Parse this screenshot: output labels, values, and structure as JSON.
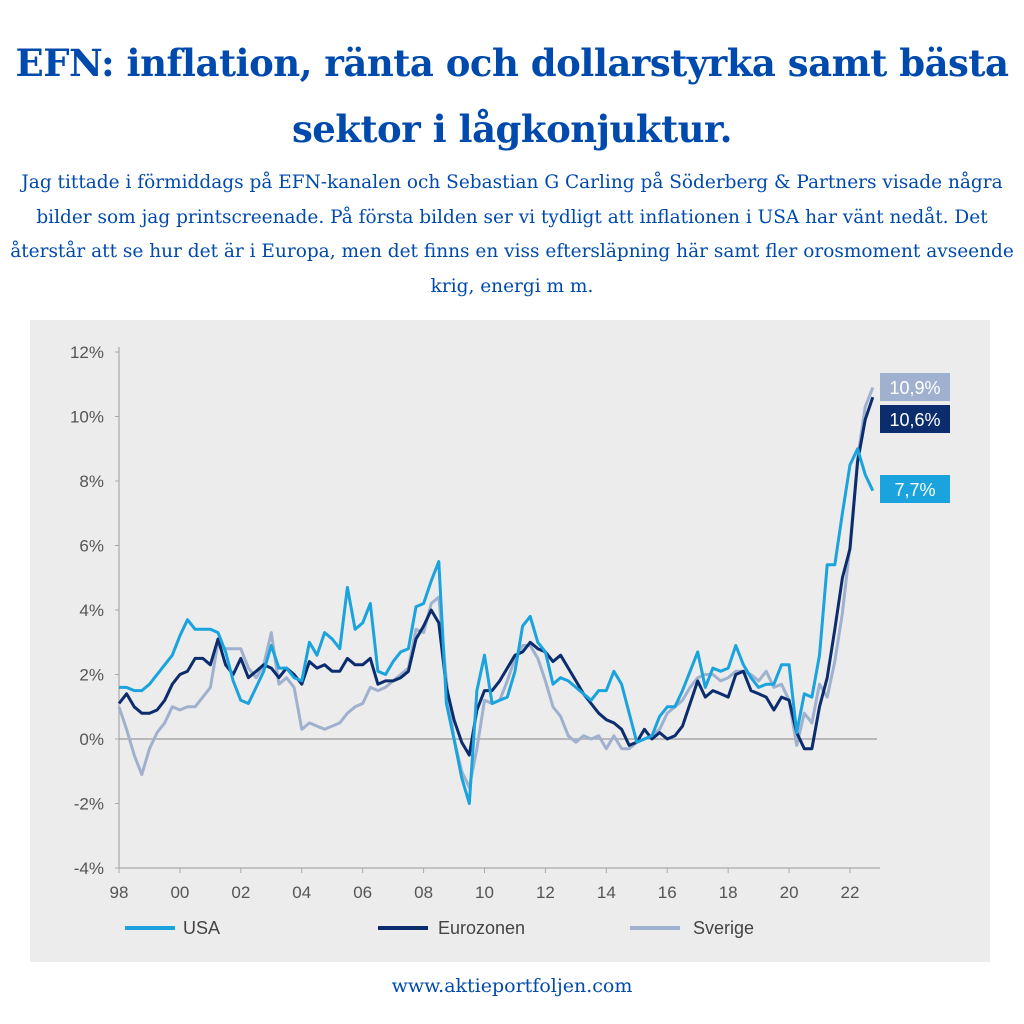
{
  "header": {
    "title": "EFN: inflation, ränta och dollarstyrka samt bästa sektor i lågkonjuktur.",
    "intro": "Jag tittade i förmiddags på EFN-kanalen och Sebastian G Carling på Söderberg & Partners visade några bilder som jag printscreenade. På första bilden ser vi tydligt att inflationen i USA har vänt nedåt. Det återstår att se hur det är i Europa, men det finns en viss eftersläpning här samt fler orosmoment avseende krig, energi m m."
  },
  "footer": {
    "url": "www.aktieportfoljen.com"
  },
  "chart_data": {
    "type": "line",
    "title": "",
    "xlabel": "",
    "ylabel": "",
    "xlim": [
      1998,
      2022.9
    ],
    "ylim": [
      -4,
      12
    ],
    "x_ticks": [
      "98",
      "00",
      "02",
      "04",
      "06",
      "08",
      "10",
      "12",
      "14",
      "16",
      "18",
      "20",
      "22"
    ],
    "y_ticks": [
      "12%",
      "10%",
      "8%",
      "6%",
      "4%",
      "2%",
      "0%",
      "-2%",
      "-4%"
    ],
    "grid": false,
    "zero_line": true,
    "legend_position": "bottom",
    "x_step": "quarterly from 1998",
    "series": [
      {
        "name": "USA",
        "color": "#1aa3dc",
        "end_label": "7,7%",
        "values": [
          1.6,
          1.6,
          1.5,
          1.5,
          1.7,
          2.0,
          2.3,
          2.6,
          3.2,
          3.7,
          3.4,
          3.4,
          3.4,
          3.3,
          2.7,
          1.8,
          1.2,
          1.1,
          1.6,
          2.1,
          2.9,
          2.2,
          2.2,
          1.9,
          1.8,
          3.0,
          2.6,
          3.3,
          3.1,
          2.8,
          4.7,
          3.4,
          3.6,
          4.2,
          2.1,
          2.0,
          2.4,
          2.7,
          2.8,
          4.1,
          4.2,
          4.9,
          5.5,
          1.1,
          0.0,
          -1.2,
          -2.0,
          1.5,
          2.6,
          1.1,
          1.2,
          1.3,
          2.1,
          3.5,
          3.8,
          3.0,
          2.7,
          1.7,
          1.9,
          1.8,
          1.6,
          1.4,
          1.2,
          1.5,
          1.5,
          2.1,
          1.7,
          0.8,
          -0.1,
          0.0,
          0.1,
          0.7,
          1.0,
          1.0,
          1.5,
          2.1,
          2.7,
          1.6,
          2.2,
          2.1,
          2.2,
          2.9,
          2.3,
          1.9,
          1.6,
          1.7,
          1.7,
          2.3,
          2.3,
          0.2,
          1.4,
          1.3,
          2.6,
          5.4,
          5.4,
          7.0,
          8.5,
          9.0,
          8.2,
          7.7
        ]
      },
      {
        "name": "Eurozonen",
        "color": "#0b2d6e",
        "end_label": "10,6%",
        "values": [
          1.1,
          1.4,
          1.0,
          0.8,
          0.8,
          0.9,
          1.2,
          1.7,
          2.0,
          2.1,
          2.5,
          2.5,
          2.3,
          3.1,
          2.3,
          2.0,
          2.5,
          1.9,
          2.1,
          2.3,
          2.2,
          1.9,
          2.2,
          2.0,
          1.7,
          2.4,
          2.2,
          2.3,
          2.1,
          2.1,
          2.5,
          2.3,
          2.3,
          2.5,
          1.7,
          1.8,
          1.8,
          1.9,
          2.1,
          3.1,
          3.5,
          4.0,
          3.6,
          1.6,
          0.6,
          -0.1,
          -0.5,
          0.9,
          1.5,
          1.5,
          1.8,
          2.2,
          2.6,
          2.7,
          3.0,
          2.8,
          2.7,
          2.4,
          2.6,
          2.2,
          1.8,
          1.4,
          1.1,
          0.8,
          0.6,
          0.5,
          0.3,
          -0.2,
          -0.1,
          0.3,
          0.0,
          0.2,
          0.0,
          0.1,
          0.4,
          1.1,
          1.8,
          1.3,
          1.5,
          1.4,
          1.3,
          2.0,
          2.1,
          1.5,
          1.4,
          1.3,
          0.9,
          1.3,
          1.2,
          0.2,
          -0.3,
          -0.3,
          1.0,
          1.9,
          3.4,
          5.0,
          5.9,
          8.6,
          9.9,
          10.6
        ]
      },
      {
        "name": "Sverige",
        "color": "#9fb1cf",
        "end_label": "10,9%",
        "values": [
          1.0,
          0.3,
          -0.5,
          -1.1,
          -0.3,
          0.2,
          0.5,
          1.0,
          0.9,
          1.0,
          1.0,
          1.3,
          1.6,
          3.0,
          2.8,
          2.8,
          2.8,
          2.2,
          1.9,
          2.3,
          3.3,
          1.7,
          1.9,
          1.6,
          0.3,
          0.5,
          0.4,
          0.3,
          0.4,
          0.5,
          0.8,
          1.0,
          1.1,
          1.6,
          1.5,
          1.6,
          1.8,
          2.0,
          2.2,
          3.4,
          3.3,
          4.2,
          4.4,
          1.8,
          0.0,
          -1.0,
          -1.5,
          -0.3,
          1.2,
          1.1,
          1.2,
          1.8,
          2.5,
          2.9,
          2.9,
          2.5,
          1.8,
          1.0,
          0.7,
          0.1,
          -0.1,
          0.1,
          0.0,
          0.1,
          -0.3,
          0.1,
          -0.3,
          -0.3,
          -0.1,
          0.0,
          0.1,
          0.3,
          0.8,
          1.0,
          1.2,
          1.6,
          1.9,
          2.0,
          2.0,
          1.8,
          1.9,
          2.1,
          2.1,
          2.0,
          1.8,
          2.1,
          1.6,
          1.7,
          1.2,
          -0.2,
          0.8,
          0.5,
          1.7,
          1.3,
          2.4,
          3.9,
          6.0,
          8.7,
          10.3,
          10.9
        ]
      }
    ]
  }
}
